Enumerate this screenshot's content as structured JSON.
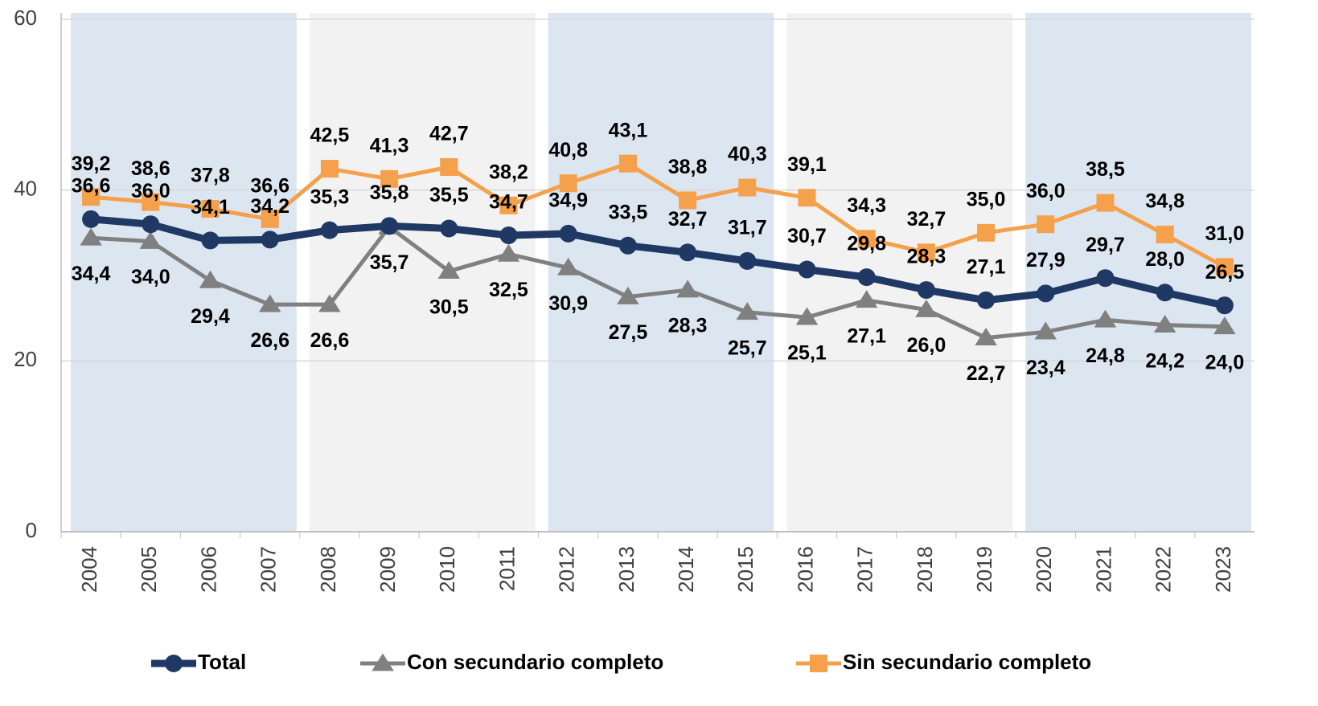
{
  "chart_data": {
    "type": "line",
    "categories": [
      "2004",
      "2005",
      "2006",
      "2007",
      "2008",
      "2009",
      "2010",
      "2011",
      "2012",
      "2013",
      "2014",
      "2015",
      "2016",
      "2017",
      "2018",
      "2019",
      "2020",
      "2021",
      "2022",
      "2023"
    ],
    "series": [
      {
        "name": "Total",
        "color": "#203864",
        "marker": "circle",
        "values": [
          36.6,
          36.0,
          34.1,
          34.2,
          35.3,
          35.8,
          35.5,
          34.7,
          34.9,
          33.5,
          32.7,
          31.7,
          30.7,
          29.8,
          28.3,
          27.1,
          27.9,
          29.7,
          28.0,
          26.5
        ],
        "value_labels": [
          "36,6",
          "36,0",
          "34,1",
          "34,2",
          "35,3",
          "35,8",
          "35,5",
          "34,7",
          "34,9",
          "33,5",
          "32,7",
          "31,7",
          "30,7",
          "29,8",
          "28,3",
          "27,1",
          "27,9",
          "29,7",
          "28,0",
          "26,5"
        ]
      },
      {
        "name": "Con secundario completo",
        "color": "#808080",
        "marker": "triangle",
        "values": [
          34.4,
          34.0,
          29.4,
          26.6,
          26.6,
          35.7,
          30.5,
          32.5,
          30.9,
          27.5,
          28.3,
          25.7,
          25.1,
          27.1,
          26.0,
          22.7,
          23.4,
          24.8,
          24.2,
          24.0
        ],
        "value_labels": [
          "34,4",
          "34,0",
          "29,4",
          "26,6",
          "26,6",
          "35,7",
          "30,5",
          "32,5",
          "30,9",
          "27,5",
          "28,3",
          "25,7",
          "25,1",
          "27,1",
          "26,0",
          "22,7",
          "23,4",
          "24,8",
          "24,2",
          "24,0"
        ]
      },
      {
        "name": "Sin secundario completo",
        "color": "#f5a04a",
        "marker": "square",
        "values": [
          39.2,
          38.6,
          37.8,
          36.6,
          42.5,
          41.3,
          42.7,
          38.2,
          40.8,
          43.1,
          38.8,
          40.3,
          39.1,
          34.3,
          32.7,
          35.0,
          36.0,
          38.5,
          34.8,
          31.0
        ],
        "value_labels": [
          "39,2",
          "38,6",
          "37,8",
          "36,6",
          "42,5",
          "41,3",
          "42,7",
          "38,2",
          "40,8",
          "43,1",
          "38,8",
          "40,3",
          "39,1",
          "34,3",
          "32,7",
          "35,0",
          "36,0",
          "38,5",
          "34,8",
          "31,0"
        ]
      }
    ],
    "ylim": [
      0,
      60
    ],
    "yticks": [
      0,
      20,
      40,
      60
    ],
    "grid": true,
    "legend": "bottom"
  }
}
